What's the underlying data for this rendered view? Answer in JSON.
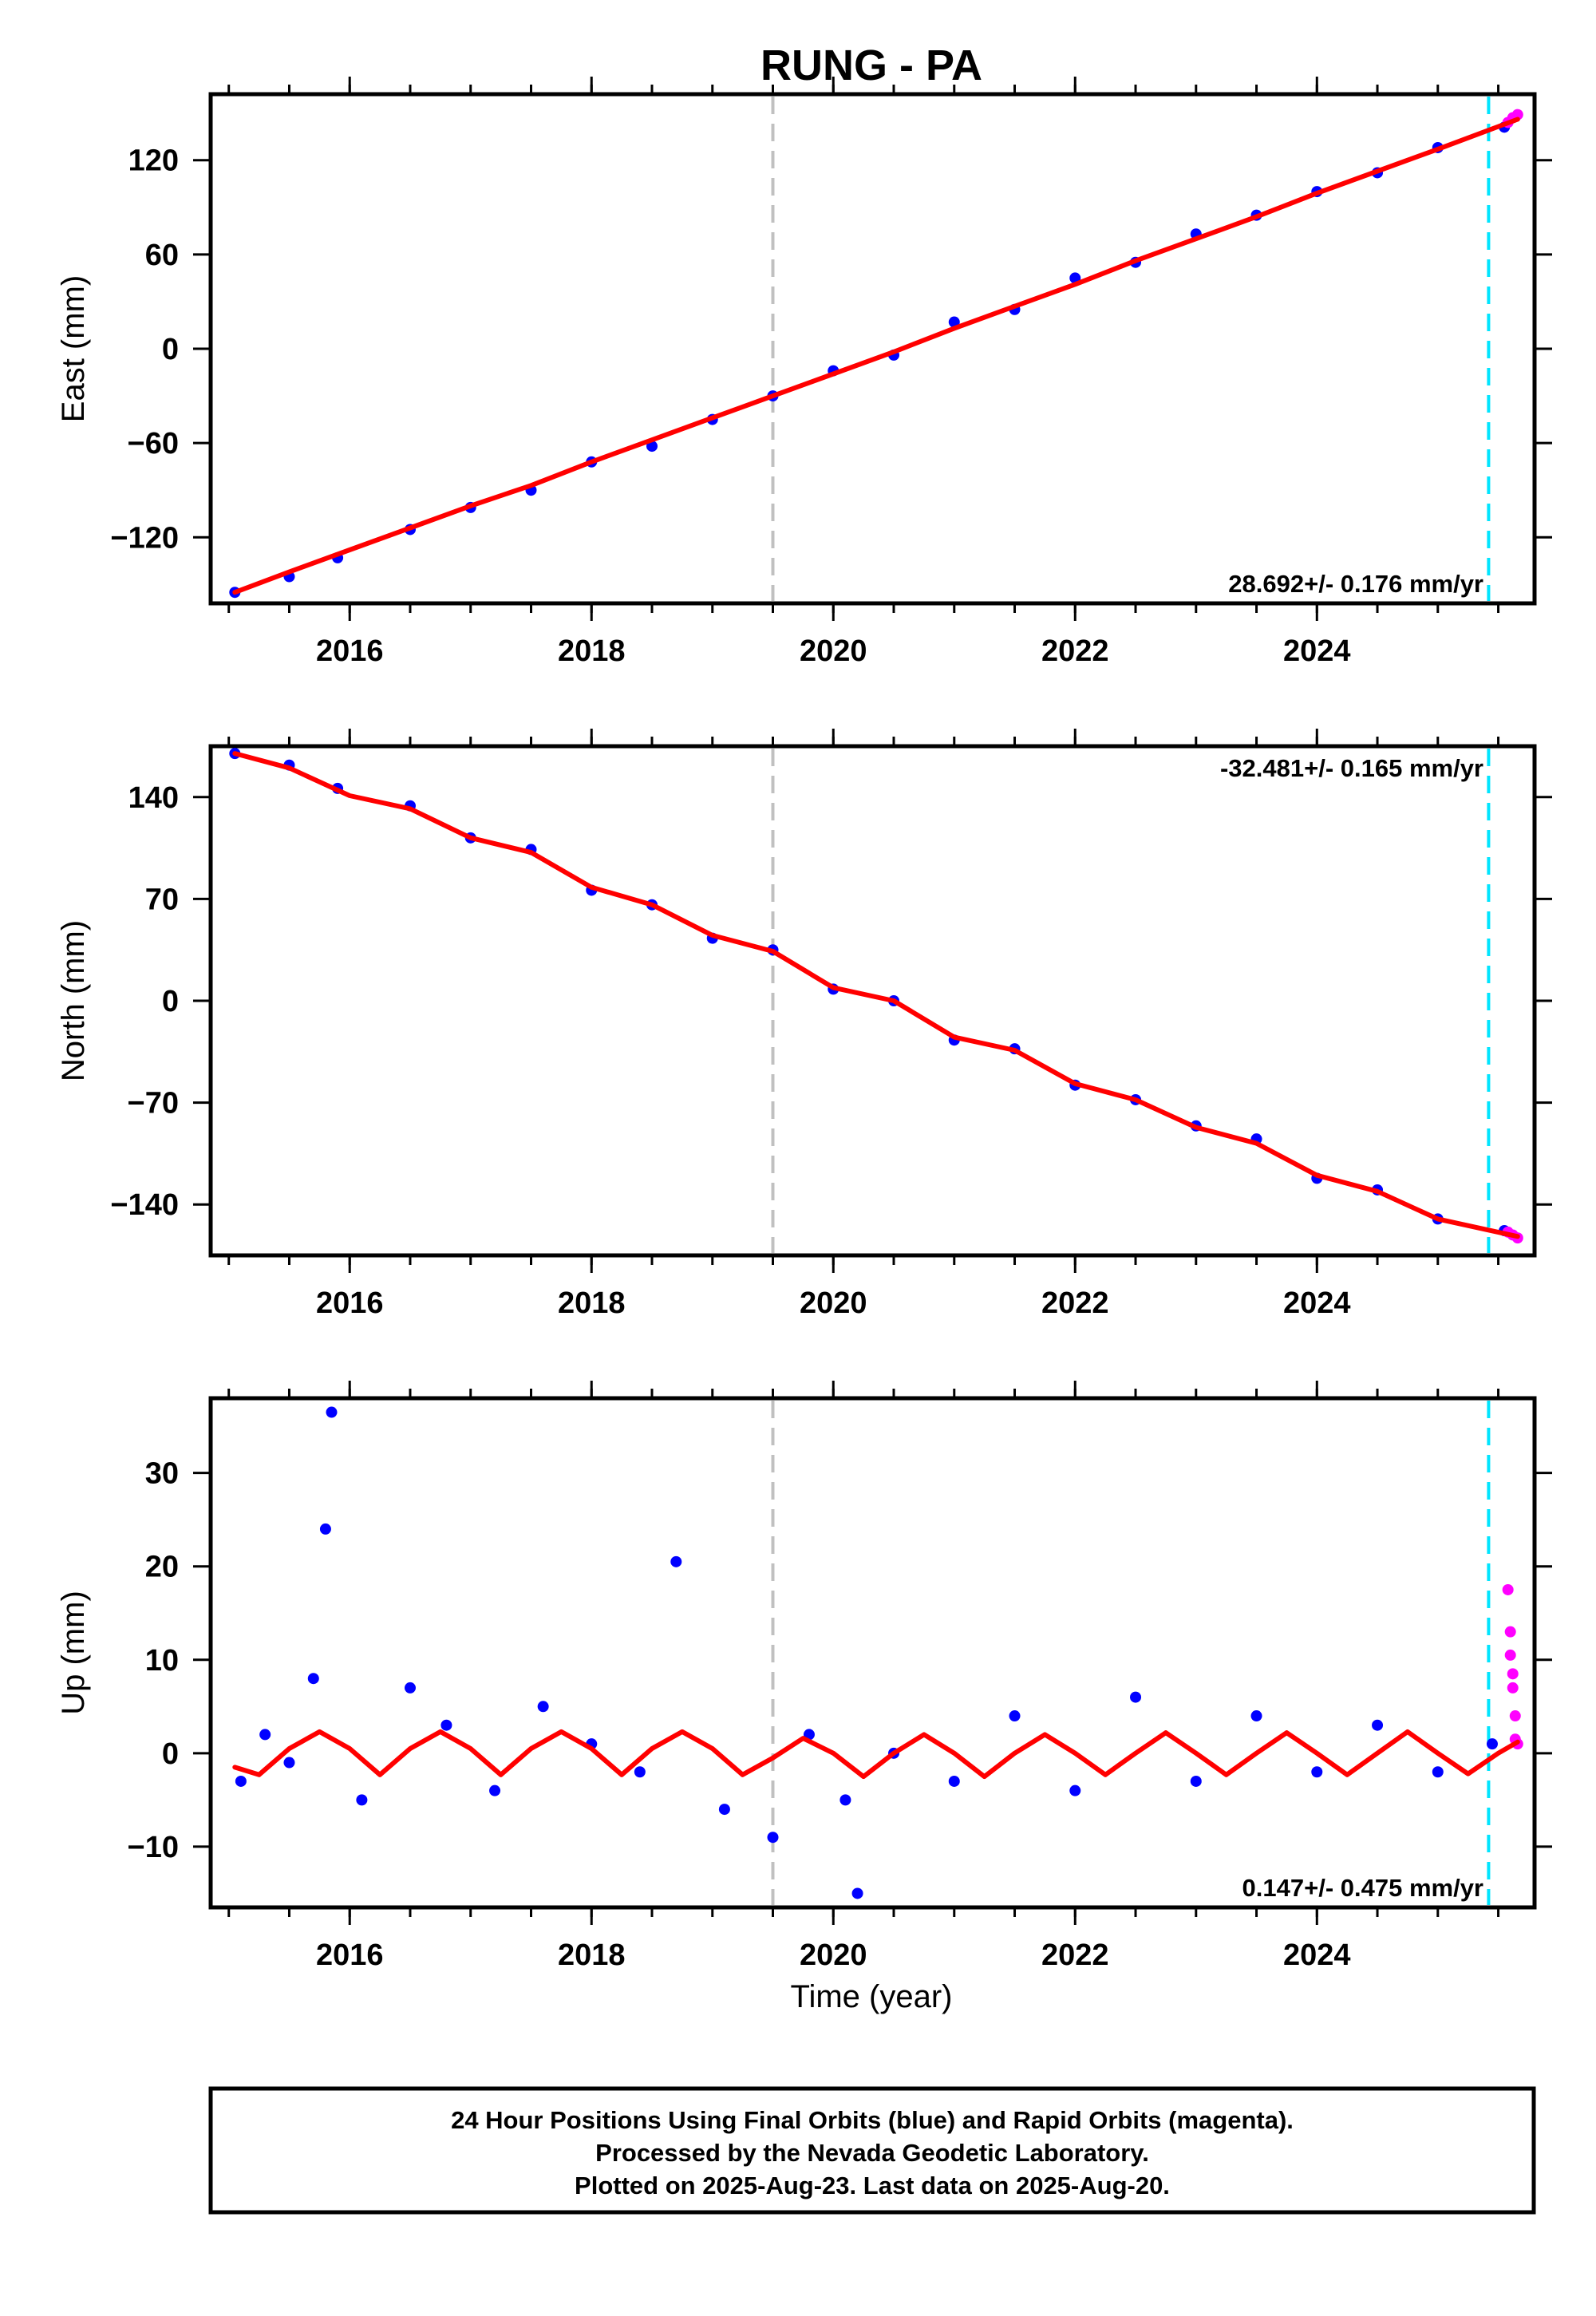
{
  "title": "RUNG - PA",
  "xlabel": "Time (year)",
  "footer": [
    "24 Hour Positions Using Final Orbits (blue) and Rapid Orbits (magenta).",
    "Processed by the Nevada Geodetic Laboratory.",
    "Plotted on 2025-Aug-23. Last data on 2025-Aug-20."
  ],
  "colors": {
    "final_orbits": "#0000ff",
    "rapid_orbits": "#ff00ff",
    "model_fit": "#ff0000",
    "gray_dashed_line": "#c0c0c0",
    "cyan_dashed_line": "#00e5ff"
  },
  "chart_data": [
    {
      "type": "scatter",
      "ylabel": "East (mm)",
      "rate_label": "28.692+/- 0.176 mm/yr",
      "rate_position": "bottom-right",
      "xlim": [
        2014.85,
        2025.8
      ],
      "ylim": [
        -162,
        162
      ],
      "xticks": [
        2016,
        2018,
        2020,
        2022,
        2024
      ],
      "yticks": [
        -120,
        -60,
        0,
        60,
        120
      ],
      "gray_dashed_x": 2019.5,
      "cyan_dashed_x": 2025.42,
      "final_orbits": {
        "x": [
          2015.05,
          2015.5,
          2015.9,
          2016.5,
          2017.0,
          2017.5,
          2018.0,
          2018.5,
          2019.0,
          2019.5,
          2020.0,
          2020.5,
          2021.0,
          2021.5,
          2022.0,
          2022.5,
          2023.0,
          2023.5,
          2024.0,
          2024.5,
          2025.0,
          2025.55
        ],
        "y": [
          -155,
          -145,
          -133,
          -115,
          -101,
          -90,
          -72,
          -62,
          -45,
          -30,
          -14,
          -4,
          17,
          25,
          45,
          55,
          73,
          85,
          100,
          112,
          128,
          141
        ]
      },
      "rapid_orbits": {
        "x": [
          2025.58,
          2025.62,
          2025.66
        ],
        "y": [
          144,
          147,
          149
        ]
      },
      "model_fit": {
        "x": [
          2015.05,
          2015.5,
          2016.0,
          2016.5,
          2017.0,
          2017.5,
          2018.0,
          2018.5,
          2019.0,
          2019.5,
          2020.0,
          2020.5,
          2021.0,
          2021.5,
          2022.0,
          2022.5,
          2023.0,
          2023.5,
          2024.0,
          2024.5,
          2025.0,
          2025.66
        ],
        "y": [
          -155,
          -142,
          -128,
          -114,
          -100,
          -87,
          -72,
          -58,
          -44,
          -30,
          -16,
          -2,
          13,
          27,
          41,
          56,
          70,
          84,
          99,
          113,
          127,
          146
        ]
      }
    },
    {
      "type": "scatter",
      "ylabel": "North (mm)",
      "rate_label": "-32.481+/- 0.165 mm/yr",
      "rate_position": "top-right",
      "xlim": [
        2014.85,
        2025.8
      ],
      "ylim": [
        -175,
        175
      ],
      "xticks": [
        2016,
        2018,
        2020,
        2022,
        2024
      ],
      "yticks": [
        -140,
        -70,
        0,
        70,
        140
      ],
      "gray_dashed_x": 2019.5,
      "cyan_dashed_x": 2025.42,
      "final_orbits": {
        "x": [
          2015.05,
          2015.5,
          2015.9,
          2016.5,
          2017.0,
          2017.5,
          2018.0,
          2018.5,
          2019.0,
          2019.5,
          2020.0,
          2020.5,
          2021.0,
          2021.5,
          2022.0,
          2022.5,
          2023.0,
          2023.5,
          2024.0,
          2024.5,
          2025.0,
          2025.55
        ],
        "y": [
          170,
          162,
          146,
          134,
          112,
          104,
          76,
          66,
          43,
          35,
          8,
          0,
          -27,
          -33,
          -58,
          -68,
          -86,
          -95,
          -122,
          -130,
          -150,
          -158
        ]
      },
      "rapid_orbits": {
        "x": [
          2025.58,
          2025.62,
          2025.66
        ],
        "y": [
          -159,
          -161,
          -163
        ]
      },
      "model_fit": {
        "x": [
          2015.05,
          2015.5,
          2016.0,
          2016.5,
          2017.0,
          2017.5,
          2018.0,
          2018.5,
          2019.0,
          2019.5,
          2020.0,
          2020.5,
          2021.0,
          2021.5,
          2022.0,
          2022.5,
          2023.0,
          2023.5,
          2024.0,
          2024.5,
          2025.0,
          2025.66
        ],
        "y": [
          170,
          160,
          141,
          132,
          112,
          102,
          78,
          66,
          45,
          34,
          9,
          0,
          -25,
          -34,
          -57,
          -68,
          -87,
          -98,
          -120,
          -131,
          -150,
          -162
        ]
      }
    },
    {
      "type": "scatter",
      "ylabel": "Up (mm)",
      "rate_label": "0.147+/- 0.475 mm/yr",
      "rate_position": "bottom-right",
      "xlim": [
        2014.85,
        2025.8
      ],
      "ylim": [
        -16.5,
        38
      ],
      "xticks": [
        2016,
        2018,
        2020,
        2022,
        2024
      ],
      "yticks": [
        -10,
        0,
        10,
        20,
        30
      ],
      "gray_dashed_x": 2019.5,
      "cyan_dashed_x": 2025.42,
      "final_orbits": {
        "x": [
          2015.1,
          2015.3,
          2015.5,
          2015.7,
          2015.8,
          2015.85,
          2016.1,
          2016.5,
          2016.8,
          2017.2,
          2017.6,
          2018.0,
          2018.4,
          2018.7,
          2019.1,
          2019.5,
          2019.8,
          2020.1,
          2020.2,
          2020.5,
          2021.0,
          2021.5,
          2022.0,
          2022.5,
          2023.0,
          2023.5,
          2024.0,
          2024.5,
          2025.0,
          2025.45
        ],
        "y": [
          -3,
          2,
          -1,
          8,
          24,
          36.5,
          -5,
          7,
          3,
          -4,
          5,
          1,
          -2,
          20.5,
          -6,
          -9,
          2,
          -5,
          -15,
          0,
          -3,
          4,
          -4,
          6,
          -3,
          4,
          -2,
          3,
          -2,
          1
        ]
      },
      "rapid_orbits": {
        "x": [
          2025.58,
          2025.6,
          2025.6,
          2025.62,
          2025.62,
          2025.64,
          2025.64,
          2025.66
        ],
        "y": [
          17.5,
          13,
          10.5,
          8.5,
          7,
          4,
          1.5,
          1
        ]
      },
      "model_fit": {
        "x": [
          2015.05,
          2015.25,
          2015.5,
          2015.75,
          2016.0,
          2016.25,
          2016.5,
          2016.75,
          2017.0,
          2017.25,
          2017.5,
          2017.75,
          2018.0,
          2018.25,
          2018.5,
          2018.75,
          2019.0,
          2019.25,
          2019.5,
          2019.75,
          2020.0,
          2020.25,
          2020.5,
          2020.75,
          2021.0,
          2021.25,
          2021.5,
          2021.75,
          2022.0,
          2022.25,
          2022.5,
          2022.75,
          2023.0,
          2023.25,
          2023.5,
          2023.75,
          2024.0,
          2024.25,
          2024.5,
          2024.75,
          2025.0,
          2025.25,
          2025.5,
          2025.66
        ],
        "y": [
          -1.5,
          -2.3,
          0.5,
          2.3,
          0.5,
          -2.3,
          0.5,
          2.3,
          0.5,
          -2.3,
          0.5,
          2.3,
          0.5,
          -2.3,
          0.5,
          2.3,
          0.5,
          -2.3,
          -0.5,
          1.6,
          0,
          -2.5,
          0,
          2,
          0,
          -2.5,
          0,
          2,
          0,
          -2.3,
          0,
          2.2,
          0,
          -2.3,
          0,
          2.2,
          0,
          -2.3,
          0,
          2.3,
          0,
          -2.2,
          0,
          1.2
        ]
      }
    }
  ]
}
